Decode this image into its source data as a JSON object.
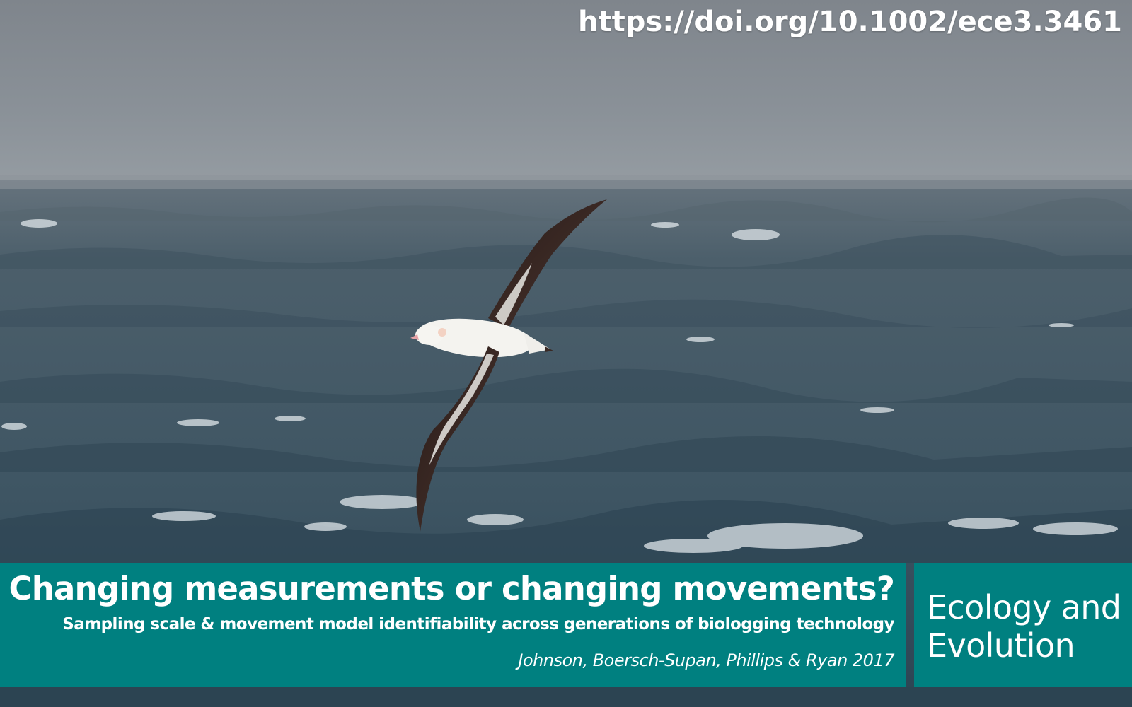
{
  "doi": "https://doi.org/10.1002/ece3.3461",
  "banner": {
    "title": "Changing measurements or changing movements?",
    "subtitle": "Sampling scale & movement model identifiability across generations of biologging technology",
    "authors": "Johnson, Boersch-Supan, Phillips & Ryan 2017"
  },
  "journal": {
    "line1": "Ecology and",
    "line2": "Evolution"
  },
  "colors": {
    "banner": "#008080",
    "text": "#ffffff",
    "sky": "#838a91",
    "sea": "#3e5766"
  }
}
